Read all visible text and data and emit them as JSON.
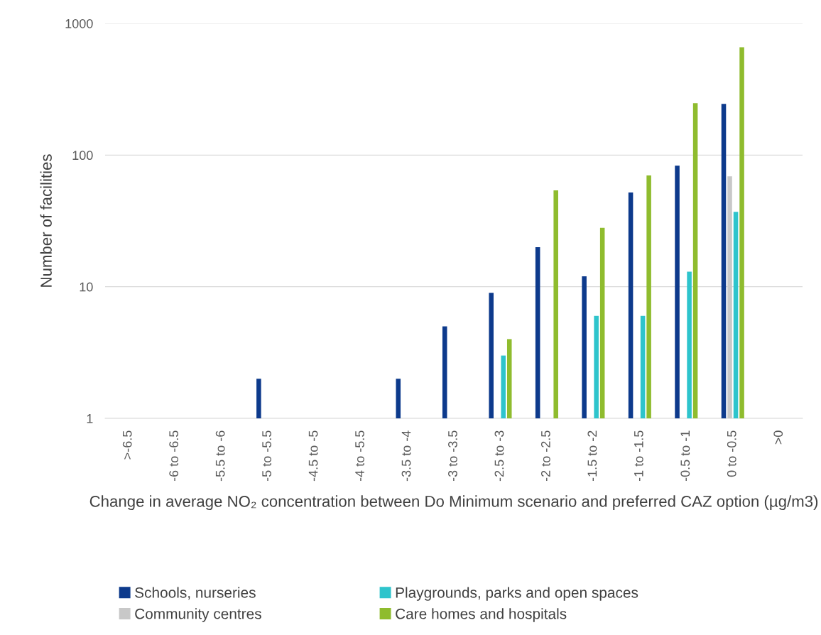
{
  "chart_data": {
    "type": "bar",
    "xlabel": "Change in average NO₂ concentration between Do Minimum scenario and preferred CAZ option (µg/m3)",
    "ylabel": "Number of facilities",
    "categories": [
      ">-6.5",
      "-6 to -6.5",
      "-5.5 to -6",
      "-5 to -5.5",
      "-4.5 to -5",
      "-4 to -5.5",
      "-3.5 to -4",
      "-3 to -3.5",
      "-2.5 to -3",
      "-2 to -2.5",
      "-1.5 to -2",
      "-1 to -1.5",
      "-0.5 to -1",
      "0 to -0.5",
      ">0"
    ],
    "series": [
      {
        "name": "Schools, nurseries",
        "color": "#0d3a8c",
        "values": [
          null,
          null,
          null,
          2,
          null,
          null,
          2,
          5,
          9,
          20,
          12,
          52,
          83,
          245,
          null
        ]
      },
      {
        "name": "Community centres",
        "color": "#c8c8c8",
        "values": [
          null,
          null,
          null,
          null,
          null,
          null,
          null,
          null,
          null,
          null,
          null,
          null,
          null,
          69,
          null
        ]
      },
      {
        "name": "Playgrounds, parks and open spaces",
        "color": "#2ec4cc",
        "values": [
          null,
          null,
          null,
          null,
          null,
          null,
          null,
          null,
          3,
          null,
          6,
          6,
          13,
          37,
          null
        ]
      },
      {
        "name": "Care homes and hospitals",
        "color": "#8fbc2e",
        "values": [
          null,
          null,
          null,
          null,
          null,
          null,
          null,
          null,
          4,
          54,
          28,
          70,
          248,
          660,
          null
        ]
      }
    ],
    "log": true,
    "ylim": [
      1,
      1000
    ],
    "yticks": [
      1,
      10,
      100,
      1000
    ],
    "grid": "y",
    "legend": "bottom"
  }
}
